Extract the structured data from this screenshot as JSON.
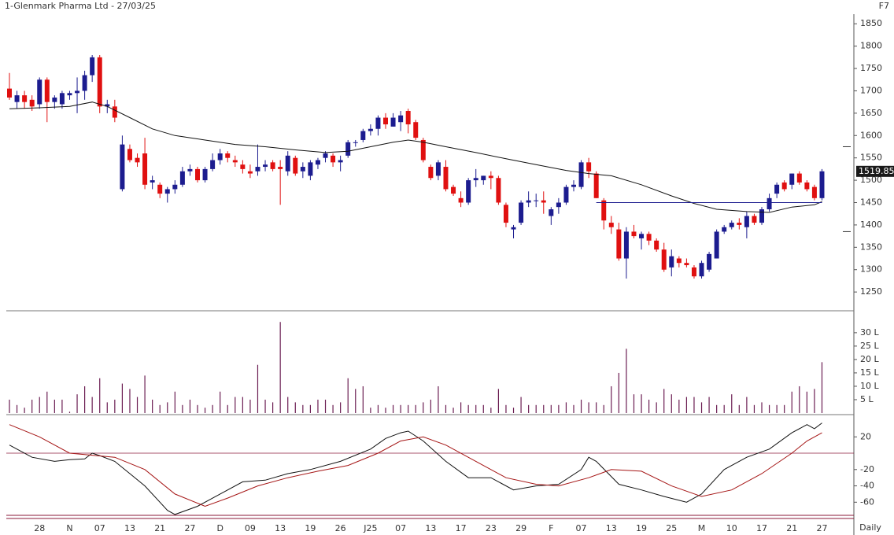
{
  "shortcut": "F7",
  "period": "Daily",
  "chart_data": [
    {
      "type": "candlestick",
      "title": "1-Glenmark Pharma Ltd - 27/03/25",
      "categories": [
        null,
        null,
        null,
        null,
        "28",
        null,
        null,
        null,
        "N",
        null,
        null,
        null,
        "07",
        null,
        null,
        null,
        "13",
        null,
        null,
        null,
        "21",
        null,
        null,
        null,
        "27",
        null,
        null,
        null,
        "D",
        null,
        null,
        null,
        "09",
        null,
        null,
        null,
        "13",
        null,
        null,
        null,
        "19",
        null,
        null,
        null,
        "26",
        null,
        null,
        null,
        "J25",
        null,
        null,
        null,
        "07",
        null,
        null,
        null,
        "13",
        null,
        null,
        null,
        "17",
        null,
        null,
        null,
        "23",
        null,
        null,
        null,
        "29",
        null,
        null,
        null,
        "F",
        null,
        null,
        null,
        "07",
        null,
        null,
        null,
        "13",
        null,
        null,
        null,
        "19",
        null,
        null,
        null,
        "25",
        null,
        null,
        null,
        "M",
        null,
        null,
        null,
        "10",
        null,
        null,
        null,
        "17",
        null,
        null,
        null,
        "21",
        null,
        null,
        null,
        "27"
      ],
      "open": [
        1705,
        1675,
        1690,
        1680,
        1670,
        1725,
        1675,
        1670,
        1690,
        1695,
        1700,
        1735,
        1775,
        1665,
        1665,
        1480,
        1570,
        1550,
        1560,
        1495,
        1490,
        1470,
        1480,
        1490,
        1520,
        1525,
        1500,
        1525,
        1545,
        1560,
        1545,
        1535,
        1520,
        1520,
        1530,
        1540,
        1530,
        1520,
        1550,
        1520,
        1510,
        1535,
        1550,
        1555,
        1540,
        1555,
        1585,
        1590,
        1610,
        1615,
        1640,
        1620,
        1630,
        1655,
        1630,
        1590,
        1530,
        1510,
        1530,
        1485,
        1460,
        1450,
        1500,
        1500,
        1510,
        1505,
        1445,
        1390,
        1405,
        1450,
        1455,
        1455,
        1420,
        1440,
        1450,
        1485,
        1485,
        1540,
        1515,
        1455,
        1405,
        1390,
        1325,
        1385,
        1370,
        1380,
        1365,
        1345,
        1305,
        1325,
        1315,
        1305,
        1285,
        1300,
        1325,
        1385,
        1395,
        1405,
        1395,
        1420,
        1405,
        1435,
        1470,
        1495,
        1490,
        1515,
        1495,
        1485,
        1460
      ],
      "high": [
        1740,
        1700,
        1700,
        1690,
        1730,
        1730,
        1690,
        1700,
        1700,
        1730,
        1745,
        1780,
        1780,
        1680,
        1680,
        1600,
        1580,
        1560,
        1595,
        1510,
        1495,
        1485,
        1500,
        1530,
        1535,
        1530,
        1530,
        1560,
        1570,
        1565,
        1555,
        1545,
        1535,
        1580,
        1545,
        1545,
        1545,
        1565,
        1555,
        1540,
        1545,
        1550,
        1565,
        1560,
        1555,
        1590,
        1590,
        1615,
        1625,
        1645,
        1650,
        1650,
        1655,
        1660,
        1635,
        1595,
        1535,
        1545,
        1545,
        1490,
        1475,
        1505,
        1525,
        1510,
        1520,
        1510,
        1450,
        1400,
        1455,
        1475,
        1470,
        1475,
        1440,
        1460,
        1490,
        1500,
        1545,
        1550,
        1520,
        1460,
        1420,
        1405,
        1395,
        1400,
        1385,
        1385,
        1370,
        1360,
        1345,
        1330,
        1325,
        1310,
        1320,
        1340,
        1390,
        1400,
        1410,
        1415,
        1430,
        1425,
        1440,
        1470,
        1495,
        1500,
        1515,
        1520,
        1500,
        1490,
        1525
      ],
      "low": [
        1680,
        1660,
        1660,
        1655,
        1660,
        1630,
        1660,
        1660,
        1680,
        1650,
        1680,
        1720,
        1650,
        1650,
        1630,
        1475,
        1540,
        1530,
        1480,
        1480,
        1460,
        1450,
        1470,
        1485,
        1510,
        1495,
        1495,
        1520,
        1535,
        1540,
        1530,
        1515,
        1505,
        1510,
        1520,
        1520,
        1445,
        1510,
        1510,
        1505,
        1500,
        1525,
        1540,
        1530,
        1520,
        1550,
        1575,
        1585,
        1600,
        1600,
        1615,
        1620,
        1610,
        1605,
        1590,
        1540,
        1500,
        1500,
        1475,
        1465,
        1440,
        1445,
        1485,
        1490,
        1480,
        1445,
        1395,
        1370,
        1400,
        1440,
        1440,
        1425,
        1400,
        1425,
        1445,
        1475,
        1480,
        1505,
        1460,
        1390,
        1380,
        1320,
        1280,
        1370,
        1345,
        1355,
        1340,
        1295,
        1285,
        1305,
        1305,
        1280,
        1280,
        1295,
        1325,
        1380,
        1390,
        1390,
        1370,
        1400,
        1400,
        1430,
        1460,
        1475,
        1480,
        1490,
        1475,
        1455,
        1455
      ],
      "close": [
        1685,
        1690,
        1675,
        1665,
        1725,
        1675,
        1685,
        1695,
        1695,
        1700,
        1735,
        1775,
        1665,
        1670,
        1640,
        1580,
        1545,
        1540,
        1490,
        1500,
        1470,
        1480,
        1490,
        1520,
        1525,
        1500,
        1525,
        1545,
        1560,
        1550,
        1540,
        1525,
        1515,
        1530,
        1535,
        1525,
        1525,
        1555,
        1515,
        1530,
        1540,
        1545,
        1560,
        1540,
        1545,
        1585,
        1585,
        1610,
        1615,
        1640,
        1625,
        1640,
        1645,
        1625,
        1595,
        1545,
        1505,
        1540,
        1480,
        1470,
        1450,
        1500,
        1505,
        1510,
        1505,
        1450,
        1405,
        1395,
        1450,
        1455,
        1455,
        1450,
        1435,
        1450,
        1485,
        1490,
        1540,
        1520,
        1460,
        1410,
        1395,
        1325,
        1385,
        1375,
        1380,
        1365,
        1345,
        1300,
        1330,
        1315,
        1310,
        1285,
        1315,
        1335,
        1385,
        1395,
        1405,
        1400,
        1420,
        1405,
        1435,
        1460,
        1490,
        1480,
        1515,
        1495,
        1480,
        1460,
        1520
      ],
      "up_color": "#1c1c8f",
      "down_color": "#e01010",
      "series": [
        {
          "color": "#111111",
          "x": [
            0,
            4,
            8,
            11,
            13,
            16,
            19,
            22,
            26,
            30,
            34,
            38,
            42,
            45,
            48,
            51,
            53,
            55,
            58,
            62,
            66,
            70,
            74,
            77,
            80,
            84,
            88,
            91,
            94,
            98,
            101,
            104,
            107,
            108
          ],
          "values": [
            1660,
            1662,
            1665,
            1675,
            1665,
            1640,
            1615,
            1600,
            1590,
            1580,
            1575,
            1568,
            1562,
            1565,
            1575,
            1585,
            1590,
            1585,
            1575,
            1562,
            1548,
            1535,
            1522,
            1515,
            1510,
            1490,
            1465,
            1448,
            1435,
            1430,
            1428,
            1440,
            1445,
            1452
          ]
        }
      ],
      "hline": {
        "value": 1450,
        "x": [
          78,
          108
        ],
        "color": "#1c1c8f"
      },
      "markers": [
        1575,
        1385
      ],
      "last_price": 1519.85,
      "ylim": [
        1208,
        1868
      ],
      "yticks": [
        1850,
        1800,
        1750,
        1700,
        1650,
        1600,
        1550,
        1500,
        1450,
        1400,
        1350,
        1300,
        1250
      ]
    },
    {
      "type": "bar",
      "color": "#6b1d52",
      "values": [
        5,
        3,
        2,
        5,
        6,
        8,
        5,
        5,
        0.5,
        7,
        10,
        6,
        13,
        4,
        5,
        11,
        9,
        6,
        14,
        5,
        3,
        4,
        8,
        3,
        5,
        3,
        2,
        3,
        8,
        3,
        6,
        6,
        5,
        18,
        5,
        4,
        34,
        6,
        4,
        3,
        3,
        5,
        5,
        3,
        4,
        13,
        9,
        10,
        2,
        3,
        2,
        3,
        3,
        3,
        3,
        4,
        5,
        10,
        3,
        2,
        4,
        3,
        3,
        3,
        2,
        9,
        3,
        2,
        6,
        3,
        3,
        3,
        3,
        3,
        4,
        3,
        5,
        4,
        4,
        3,
        10,
        15,
        24,
        7,
        7,
        5,
        4,
        9,
        7,
        5,
        6,
        6,
        4,
        6,
        3,
        3,
        7,
        3,
        6,
        3,
        4,
        3,
        3,
        3,
        8,
        10,
        8,
        9,
        19
      ],
      "ylim": [
        0,
        37.6
      ],
      "yticks": [
        {
          "value": 30,
          "label": "30 L"
        },
        {
          "value": 25,
          "label": "25 L"
        },
        {
          "value": 20,
          "label": "20 L"
        },
        {
          "value": 15,
          "label": "15 L"
        },
        {
          "value": 10,
          "label": "10 L"
        },
        {
          "value": 5,
          "label": "5 L"
        }
      ]
    },
    {
      "type": "line",
      "series": [
        {
          "color": "#111111",
          "x": [
            0,
            3,
            6,
            8,
            10,
            11,
            12,
            14,
            16,
            18,
            21,
            22,
            25,
            28,
            31,
            34,
            37,
            40,
            44,
            48,
            50,
            52,
            53,
            55,
            58,
            61,
            64,
            67,
            70,
            73,
            76,
            77,
            78,
            81,
            84,
            87,
            90,
            92,
            95,
            98,
            101,
            104,
            106,
            107,
            108
          ],
          "values": [
            10,
            -5,
            -10,
            -8,
            -7,
            0,
            -3,
            -10,
            -25,
            -40,
            -70,
            -75,
            -65,
            -50,
            -35,
            -33,
            -25,
            -20,
            -10,
            5,
            18,
            25,
            27,
            15,
            -10,
            -30,
            -30,
            -45,
            -40,
            -38,
            -20,
            -5,
            -10,
            -38,
            -45,
            -53,
            -60,
            -50,
            -20,
            -5,
            5,
            25,
            35,
            30,
            37
          ]
        },
        {
          "color": "#a51515",
          "x": [
            0,
            4,
            8,
            14,
            18,
            22,
            26,
            29,
            33,
            37,
            41,
            45,
            49,
            52,
            55,
            58,
            62,
            66,
            70,
            73,
            77,
            80,
            84,
            88,
            92,
            96,
            100,
            104,
            106,
            108
          ],
          "values": [
            35,
            20,
            0,
            -5,
            -20,
            -50,
            -65,
            -55,
            -40,
            -30,
            -22,
            -15,
            0,
            15,
            20,
            10,
            -10,
            -30,
            -38,
            -40,
            -30,
            -20,
            -22,
            -40,
            -53,
            -45,
            -25,
            0,
            15,
            25
          ]
        }
      ],
      "reference_line": 0,
      "ylim": [
        -78,
        37.6
      ],
      "yticks": [
        20,
        -20,
        -40,
        -60
      ]
    }
  ]
}
